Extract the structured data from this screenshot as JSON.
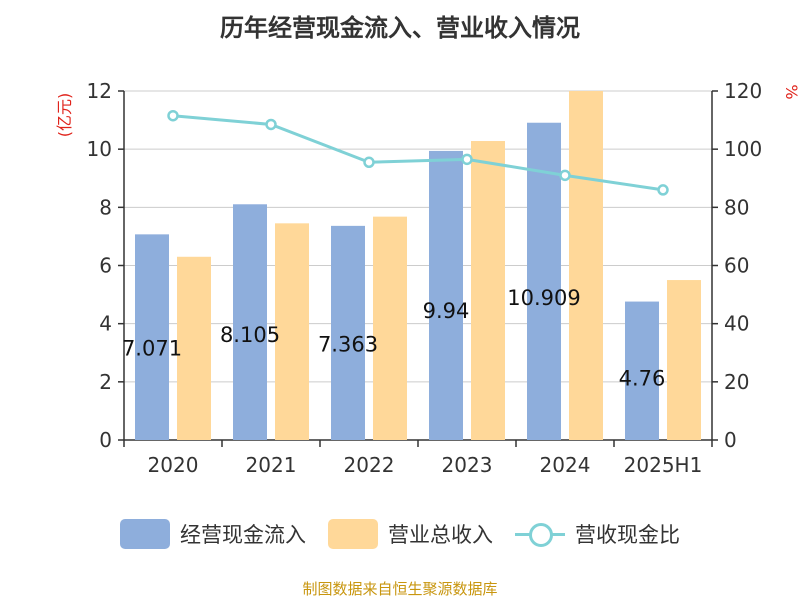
{
  "title": "历年经营现金流入、营业收入情况",
  "footer": "制图数据来自恒生聚源数据库",
  "colors": {
    "cash_inflow": "#8eaedc",
    "revenue": "#ffd899",
    "ratio": "#7fd1d6",
    "axis_label_left": "#e0231b",
    "axis_label_right": "#e0231b",
    "axis_text": "#333333",
    "grid": "#cccccc"
  },
  "chart_data": {
    "type": "bar",
    "title": "历年经营现金流入、营业收入情况",
    "categories": [
      "2020",
      "2021",
      "2022",
      "2023",
      "2024",
      "2025H1"
    ],
    "ylabel_left": "(亿元)",
    "ylabel_right": "%",
    "ylim_left": [
      0,
      12
    ],
    "yticks_left": [
      0,
      2,
      4,
      6,
      8,
      10,
      12
    ],
    "ylim_right": [
      0,
      120
    ],
    "yticks_right": [
      0,
      20,
      40,
      60,
      80,
      100,
      120
    ],
    "grid": true,
    "legend_position": "bottom",
    "series": [
      {
        "name": "经营现金流入",
        "type": "bar",
        "axis": "left",
        "values": [
          7.071,
          8.105,
          7.363,
          9.94,
          10.909,
          4.76
        ],
        "data_labels": [
          "7.071",
          "8.105",
          "7.363",
          "9.94",
          "10.909",
          "4.76"
        ]
      },
      {
        "name": "营业总收入",
        "type": "bar",
        "axis": "left",
        "values": [
          6.3,
          7.45,
          7.68,
          10.28,
          12.0,
          5.5
        ]
      },
      {
        "name": "营收现金比",
        "type": "line",
        "axis": "right",
        "values": [
          111.5,
          108.5,
          95.5,
          96.5,
          91.0,
          86.0
        ]
      }
    ]
  }
}
